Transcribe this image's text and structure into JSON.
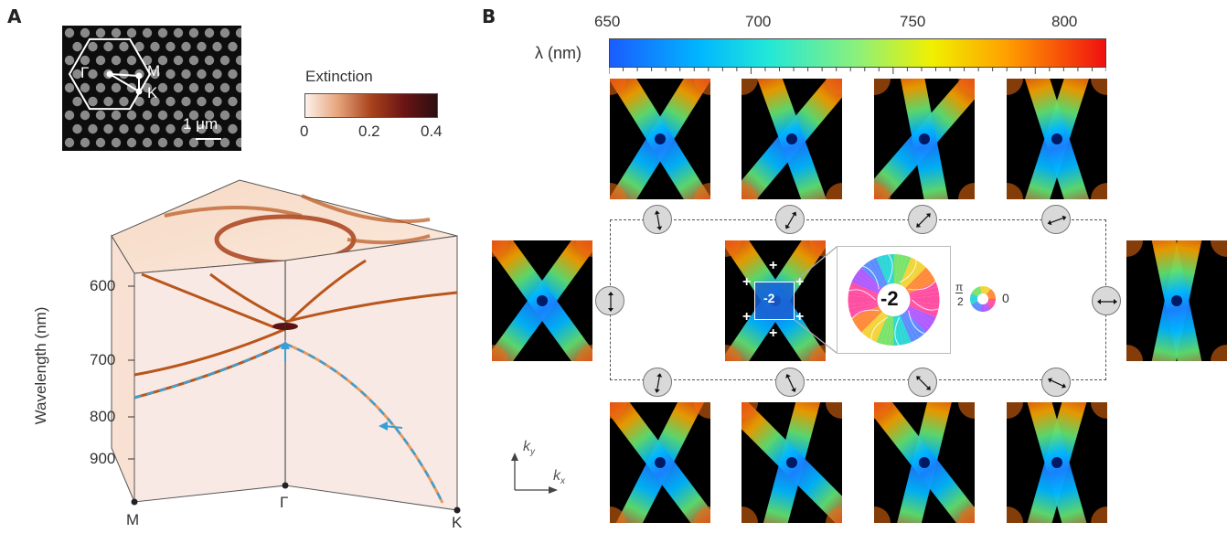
{
  "panel_a": {
    "label": "A",
    "sem": {
      "gamma": "Γ",
      "m": "M",
      "k": "K",
      "scale": "1 μm"
    },
    "extinction": {
      "title": "Extinction",
      "ticks": [
        "0",
        "0.2",
        "0.4"
      ],
      "colors": [
        "#fdf1ea",
        "#e6a37a",
        "#a8421c",
        "#6a1414",
        "#2c0f10"
      ]
    },
    "band": {
      "ylabel": "Wavelength (nm)",
      "yticks": [
        "600",
        "700",
        "800",
        "900"
      ],
      "xlabels": [
        "M",
        "Γ",
        "K"
      ],
      "line_color": "#b8561c",
      "dashed_color": "#3a9fd4"
    }
  },
  "panel_b": {
    "label": "B",
    "colorbar": {
      "label": "λ (nm)",
      "ticks": [
        "650",
        "700",
        "750",
        "800"
      ]
    },
    "center_index": "-2",
    "inset_index": "-2",
    "phase_top": "π",
    "phase_bottom": "2",
    "phase_zero": "0",
    "k_axes": {
      "ky": "k",
      "ky_sub": "y",
      "kx": "k",
      "kx_sub": "x"
    },
    "plus_sign": "+"
  }
}
